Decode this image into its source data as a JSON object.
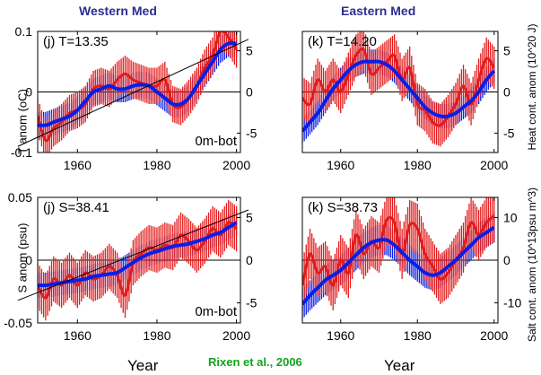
{
  "header": {
    "western_title": "Western Med",
    "eastern_title": "Eastern Med",
    "credit": "Rixen et al., 2006",
    "xlabel_left": "Year",
    "xlabel_right": "Year"
  },
  "left_labels": {
    "t_anom": "T anom (oC)",
    "s_anom": "S anom (psu)"
  },
  "right_labels": {
    "heat": "Heat cont. anom (10^20 J)",
    "salt": "Salt cont. anom (10^13psu m^3)"
  },
  "colors": {
    "blue": "#0b1ee6",
    "red": "#e31b1b",
    "trend": "#000000",
    "title": "#2a2f8f",
    "credit": "#11a51d"
  },
  "chart_data": [
    {
      "type": "line",
      "panel": "top-left",
      "annotation": "(j) T=13.35",
      "depth": "0m-bot",
      "x_ticks": [
        "1960",
        "1980",
        "2000"
      ],
      "y_ticks_left": [
        "0.1",
        "0",
        "-0.1"
      ],
      "y_ticks_right": [
        "5",
        "0",
        "-5"
      ],
      "xlim": [
        1950,
        2001
      ],
      "ylim": [
        -0.1,
        0.1
      ],
      "trend_line": {
        "x": [
          1945,
          2003
        ],
        "y": [
          -0.09,
          0.087
        ]
      },
      "series": [
        {
          "color": "blue",
          "errorbar": 0.022,
          "x": [
            1950,
            1952,
            1954,
            1956,
            1958,
            1960,
            1962,
            1964,
            1966,
            1968,
            1970,
            1972,
            1974,
            1976,
            1978,
            1980,
            1982,
            1984,
            1986,
            1988,
            1990,
            1992,
            1994,
            1996,
            1998,
            2000
          ],
          "y": [
            -0.055,
            -0.055,
            -0.05,
            -0.045,
            -0.04,
            -0.03,
            -0.015,
            0.0,
            0.005,
            0.01,
            0.005,
            0.005,
            0.01,
            0.012,
            0.01,
            0.0,
            -0.01,
            -0.02,
            -0.02,
            -0.01,
            0.01,
            0.03,
            0.05,
            0.07,
            0.08,
            0.08
          ]
        },
        {
          "color": "red",
          "errorbar": 0.03,
          "x": [
            1950,
            1952,
            1954,
            1956,
            1958,
            1960,
            1962,
            1964,
            1966,
            1968,
            1970,
            1972,
            1974,
            1976,
            1978,
            1980,
            1982,
            1984,
            1986,
            1988,
            1990,
            1992,
            1994,
            1996,
            1998,
            2000
          ],
          "y": [
            -0.04,
            -0.08,
            -0.06,
            -0.05,
            -0.035,
            -0.03,
            -0.02,
            0.005,
            0.01,
            0.005,
            0.02,
            0.03,
            0.02,
            0.015,
            0.01,
            0.01,
            0.02,
            -0.02,
            -0.025,
            -0.01,
            0.01,
            0.04,
            0.06,
            0.1,
            0.09,
            0.07
          ]
        }
      ]
    },
    {
      "type": "line",
      "panel": "top-right",
      "annotation": "(k) T=14.20",
      "x_ticks": [
        "1960",
        "1980",
        "2000"
      ],
      "y_ticks_right": [
        "5",
        "0",
        "-5"
      ],
      "xlim": [
        1950,
        2001
      ],
      "ylim": [
        -0.1,
        0.1
      ],
      "series": [
        {
          "color": "blue",
          "errorbar": 0.02,
          "x": [
            1950,
            1952,
            1954,
            1956,
            1958,
            1960,
            1962,
            1964,
            1966,
            1968,
            1970,
            1972,
            1974,
            1976,
            1978,
            1980,
            1982,
            1984,
            1986,
            1988,
            1990,
            1992,
            1994,
            1996,
            1998,
            2000
          ],
          "y": [
            -0.065,
            -0.05,
            -0.035,
            -0.015,
            0.005,
            0.02,
            0.035,
            0.045,
            0.05,
            0.05,
            0.05,
            0.045,
            0.035,
            0.02,
            0.005,
            -0.01,
            -0.025,
            -0.035,
            -0.04,
            -0.04,
            -0.035,
            -0.025,
            -0.015,
            0.0,
            0.02,
            0.035
          ]
        },
        {
          "color": "red",
          "errorbar": 0.035,
          "x": [
            1950,
            1952,
            1954,
            1956,
            1958,
            1960,
            1962,
            1964,
            1966,
            1968,
            1970,
            1972,
            1974,
            1976,
            1978,
            1980,
            1982,
            1984,
            1986,
            1988,
            1990,
            1992,
            1994,
            1996,
            1998,
            2000
          ],
          "y": [
            -0.01,
            -0.02,
            0.02,
            0.0,
            0.02,
            0.0,
            0.03,
            0.06,
            0.07,
            0.03,
            0.04,
            0.05,
            0.06,
            0.02,
            0.04,
            -0.02,
            -0.03,
            -0.05,
            -0.055,
            -0.04,
            -0.02,
            0.01,
            -0.02,
            0.02,
            0.055,
            0.04
          ]
        }
      ]
    },
    {
      "type": "line",
      "panel": "bottom-left",
      "annotation": "(j) S=38.41",
      "depth": "0m-bot",
      "x_ticks": [
        "1960",
        "1980",
        "2000"
      ],
      "y_ticks_left": [
        "0.05",
        "0",
        "-0.05"
      ],
      "y_ticks_right": [
        "5",
        "0",
        "-5"
      ],
      "xlim": [
        1950,
        2001
      ],
      "ylim": [
        -0.05,
        0.05
      ],
      "trend_line": {
        "x": [
          1945,
          2003
        ],
        "y": [
          -0.032,
          0.04
        ]
      },
      "series": [
        {
          "color": "blue",
          "errorbar": 0.01,
          "x": [
            1950,
            1952,
            1954,
            1956,
            1958,
            1960,
            1962,
            1964,
            1966,
            1968,
            1970,
            1972,
            1974,
            1976,
            1978,
            1980,
            1982,
            1984,
            1986,
            1988,
            1990,
            1992,
            1994,
            1996,
            1998,
            2000
          ],
          "y": [
            -0.02,
            -0.02,
            -0.019,
            -0.018,
            -0.017,
            -0.016,
            -0.015,
            -0.013,
            -0.012,
            -0.011,
            -0.01,
            -0.006,
            -0.002,
            0.002,
            0.005,
            0.007,
            0.009,
            0.011,
            0.012,
            0.013,
            0.015,
            0.017,
            0.02,
            0.022,
            0.026,
            0.03
          ]
        },
        {
          "color": "red",
          "errorbar": 0.018,
          "x": [
            1950,
            1952,
            1954,
            1956,
            1958,
            1960,
            1962,
            1964,
            1966,
            1968,
            1970,
            1972,
            1974,
            1976,
            1978,
            1980,
            1982,
            1984,
            1986,
            1988,
            1990,
            1992,
            1994,
            1996,
            1998,
            2000
          ],
          "y": [
            -0.02,
            -0.03,
            -0.015,
            -0.02,
            -0.012,
            -0.02,
            -0.01,
            -0.015,
            -0.012,
            -0.005,
            -0.012,
            -0.028,
            -0.002,
            0.005,
            0.01,
            0.008,
            0.012,
            0.01,
            0.02,
            0.015,
            0.008,
            0.015,
            0.025,
            0.02,
            0.03,
            0.025
          ]
        }
      ]
    },
    {
      "type": "line",
      "panel": "bottom-right",
      "annotation": "(k) S=38.73",
      "x_ticks": [
        "1960",
        "1980",
        "2000"
      ],
      "y_ticks_right": [
        "10",
        "0",
        "-10"
      ],
      "xlim": [
        1950,
        2001
      ],
      "ylim": [
        -0.05,
        0.05
      ],
      "series": [
        {
          "color": "blue",
          "errorbar": 0.012,
          "x": [
            1950,
            1952,
            1954,
            1956,
            1958,
            1960,
            1962,
            1964,
            1966,
            1968,
            1970,
            1972,
            1974,
            1976,
            1978,
            1980,
            1982,
            1984,
            1986,
            1988,
            1990,
            1992,
            1994,
            1996,
            1998,
            2000
          ],
          "y": [
            -0.035,
            -0.028,
            -0.022,
            -0.016,
            -0.012,
            -0.008,
            -0.002,
            0.004,
            0.01,
            0.014,
            0.016,
            0.016,
            0.012,
            0.006,
            0.0,
            -0.005,
            -0.01,
            -0.012,
            -0.01,
            -0.005,
            0.0,
            0.006,
            0.012,
            0.018,
            0.022,
            0.026
          ]
        },
        {
          "color": "red",
          "errorbar": 0.02,
          "x": [
            1950,
            1952,
            1954,
            1956,
            1958,
            1960,
            1962,
            1964,
            1966,
            1968,
            1970,
            1972,
            1974,
            1976,
            1978,
            1980,
            1982,
            1984,
            1986,
            1988,
            1990,
            1992,
            1994,
            1996,
            1998,
            2000
          ],
          "y": [
            -0.02,
            0.005,
            -0.01,
            -0.005,
            -0.02,
            0.0,
            -0.01,
            0.02,
            0.005,
            0.015,
            0.01,
            0.032,
            0.03,
            0.005,
            0.028,
            0.025,
            0.005,
            -0.005,
            -0.015,
            -0.01,
            0.0,
            0.01,
            0.03,
            0.02,
            0.03,
            0.035
          ]
        }
      ]
    }
  ]
}
